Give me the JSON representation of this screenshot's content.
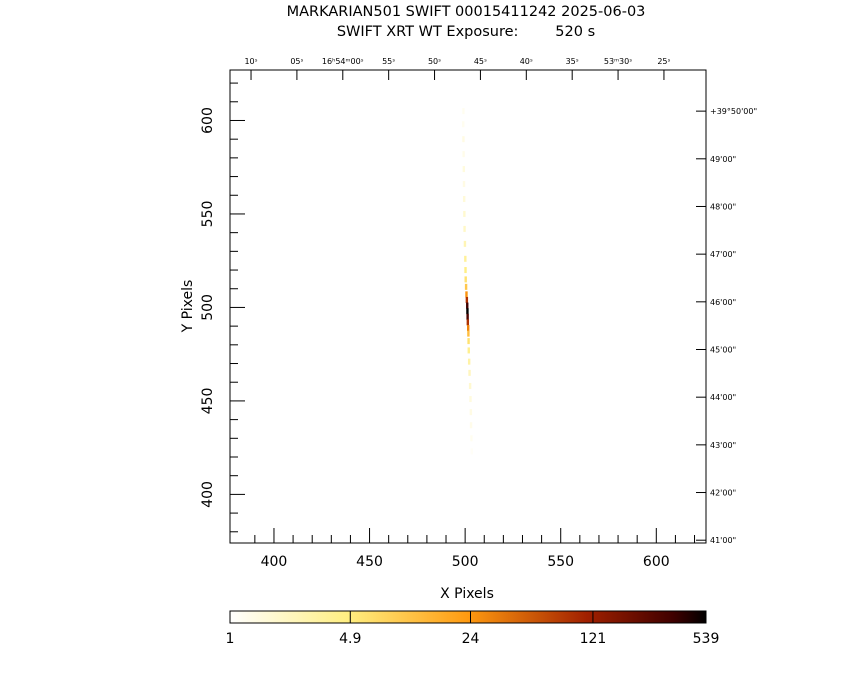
{
  "chart_data": {
    "type": "heatmap",
    "title_line1": "MARKARIAN501 SWIFT 00015411242 2025-06-03",
    "title_line2": "SWIFT XRT WT Exposure:        520 s",
    "xlabel": "X Pixels",
    "ylabel": "Y Pixels",
    "xlim": [
      377,
      626
    ],
    "ylim": [
      374,
      627
    ],
    "x_ticks": [
      400,
      450,
      500,
      550,
      600
    ],
    "y_ticks": [
      400,
      450,
      500,
      550,
      600
    ],
    "ra_ticks": [
      {
        "x": 388,
        "label": "10ˢ"
      },
      {
        "x": 412,
        "label": "05ˢ"
      },
      {
        "x": 436,
        "label": "16ʰ54ᵐ00ˢ"
      },
      {
        "x": 460,
        "label": "55ˢ"
      },
      {
        "x": 484,
        "label": "50ˢ"
      },
      {
        "x": 508,
        "label": "45ˢ"
      },
      {
        "x": 532,
        "label": "40ˢ"
      },
      {
        "x": 556,
        "label": "35ˢ"
      },
      {
        "x": 580,
        "label": "53ᵐ30ˢ"
      },
      {
        "x": 604,
        "label": "25ˢ"
      }
    ],
    "dec_ticks": [
      {
        "y": 605,
        "label": "+39°50'00\""
      },
      {
        "y": 579.5,
        "label": "49'00\""
      },
      {
        "y": 554,
        "label": "48'00\""
      },
      {
        "y": 528.5,
        "label": "47'00\""
      },
      {
        "y": 503,
        "label": "46'00\""
      },
      {
        "y": 477.5,
        "label": "45'00\""
      },
      {
        "y": 452,
        "label": "44'00\""
      },
      {
        "y": 426.5,
        "label": "43'00\""
      },
      {
        "y": 401,
        "label": "42'00\""
      },
      {
        "y": 375.5,
        "label": "41'00\""
      }
    ],
    "colorbar": {
      "ticks": [
        "1",
        "4.9",
        "24",
        "121",
        "539"
      ],
      "scale": "log",
      "min": 1,
      "max": 539
    },
    "counts": [
      {
        "x": 499.0,
        "y": 605,
        "v": 1.2
      },
      {
        "x": 498.9,
        "y": 598,
        "v": 1.2
      },
      {
        "x": 499.0,
        "y": 590,
        "v": 1.4
      },
      {
        "x": 499.1,
        "y": 582,
        "v": 1.3
      },
      {
        "x": 499.2,
        "y": 574,
        "v": 1.5
      },
      {
        "x": 499.3,
        "y": 566,
        "v": 1.4
      },
      {
        "x": 499.4,
        "y": 558,
        "v": 1.6
      },
      {
        "x": 499.5,
        "y": 550,
        "v": 1.8
      },
      {
        "x": 499.6,
        "y": 542,
        "v": 2.0
      },
      {
        "x": 499.8,
        "y": 534,
        "v": 2.5
      },
      {
        "x": 500.0,
        "y": 526,
        "v": 3.5
      },
      {
        "x": 500.1,
        "y": 520,
        "v": 4.5
      },
      {
        "x": 500.2,
        "y": 515,
        "v": 6
      },
      {
        "x": 500.4,
        "y": 511,
        "v": 10
      },
      {
        "x": 500.6,
        "y": 507,
        "v": 25
      },
      {
        "x": 500.8,
        "y": 504,
        "v": 90
      },
      {
        "x": 501.0,
        "y": 501,
        "v": 350
      },
      {
        "x": 501.1,
        "y": 498,
        "v": 539
      },
      {
        "x": 501.2,
        "y": 495,
        "v": 300
      },
      {
        "x": 501.3,
        "y": 492,
        "v": 90
      },
      {
        "x": 501.5,
        "y": 489,
        "v": 30
      },
      {
        "x": 501.6,
        "y": 486,
        "v": 12
      },
      {
        "x": 501.7,
        "y": 482,
        "v": 6
      },
      {
        "x": 501.8,
        "y": 477,
        "v": 4
      },
      {
        "x": 502.0,
        "y": 471,
        "v": 3
      },
      {
        "x": 502.2,
        "y": 465,
        "v": 2.2
      },
      {
        "x": 502.5,
        "y": 458,
        "v": 1.8
      },
      {
        "x": 502.7,
        "y": 451,
        "v": 1.5
      },
      {
        "x": 502.9,
        "y": 444,
        "v": 1.4
      },
      {
        "x": 503.0,
        "y": 437,
        "v": 1.3
      },
      {
        "x": 503.2,
        "y": 430,
        "v": 1.2
      },
      {
        "x": 503.4,
        "y": 423,
        "v": 1.1
      }
    ]
  }
}
